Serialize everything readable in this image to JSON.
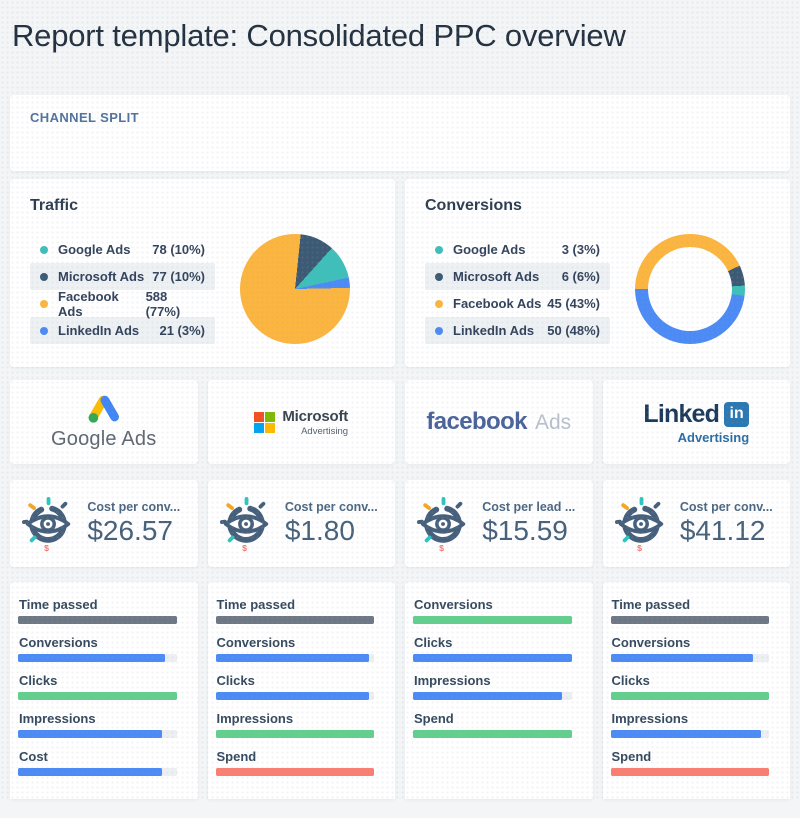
{
  "page": {
    "title": "Report template: Consolidated PPC overview",
    "background": "#f3f5f6"
  },
  "channel_split": {
    "header": "CHANNEL SPLIT"
  },
  "traffic_card": {
    "title": "Traffic",
    "legend": [
      {
        "label": "Google Ads",
        "value": "78 (10%)",
        "color": "#3fbfb9"
      },
      {
        "label": "Microsoft Ads",
        "value": "77 (10%)",
        "color": "#3d5a75"
      },
      {
        "label": "Facebook Ads",
        "value": "588 (77%)",
        "color": "#fcb53f"
      },
      {
        "label": "LinkedIn Ads",
        "value": "21 (3%)",
        "color": "#4c8bf5"
      }
    ]
  },
  "conversions_card": {
    "title": "Conversions",
    "legend": [
      {
        "label": "Google Ads",
        "value": "3 (3%)",
        "color": "#3fbfb9"
      },
      {
        "label": "Microsoft Ads",
        "value": "6 (6%)",
        "color": "#3d5a75"
      },
      {
        "label": "Facebook Ads",
        "value": "45 (43%)",
        "color": "#fcb53f"
      },
      {
        "label": "LinkedIn Ads",
        "value": "50 (48%)",
        "color": "#4c8bf5"
      }
    ]
  },
  "chart_data": [
    {
      "type": "pie",
      "title": "Traffic",
      "categories": [
        "Google Ads",
        "Microsoft Ads",
        "Facebook Ads",
        "LinkedIn Ads"
      ],
      "values": [
        78,
        77,
        588,
        21
      ],
      "percents": [
        10,
        10,
        77,
        3
      ],
      "legend_position": "left",
      "render": {
        "start_deg": 6,
        "segments": [
          {
            "name": "Microsoft Ads",
            "color": "#3d5a75",
            "pct": 10
          },
          {
            "name": "Google Ads",
            "color": "#3fbfb9",
            "pct": 10
          },
          {
            "name": "LinkedIn Ads",
            "color": "#4c8bf5",
            "pct": 3
          },
          {
            "name": "Facebook Ads",
            "color": "#fcb53f",
            "pct": 77
          }
        ]
      }
    },
    {
      "type": "pie",
      "subtype": "donut",
      "title": "Conversions",
      "categories": [
        "Google Ads",
        "Microsoft Ads",
        "Facebook Ads",
        "LinkedIn Ads"
      ],
      "values": [
        3,
        6,
        45,
        50
      ],
      "percents": [
        3,
        6,
        43,
        48
      ],
      "legend_position": "left",
      "render": {
        "start_deg": 270,
        "segments": [
          {
            "name": "Facebook Ads",
            "color": "#fcb53f",
            "pct": 43
          },
          {
            "name": "Microsoft Ads",
            "color": "#3d5a75",
            "pct": 6
          },
          {
            "name": "Google Ads",
            "color": "#3fbfb9",
            "pct": 3
          },
          {
            "name": "LinkedIn Ads",
            "color": "#4c8bf5",
            "pct": 48
          }
        ]
      }
    }
  ],
  "logo_cards": [
    {
      "name": "google-ads",
      "text": "Google Ads"
    },
    {
      "name": "microsoft-advertising",
      "line1": "Microsoft",
      "line2": "Advertising"
    },
    {
      "name": "facebook-ads",
      "word": "facebook",
      "suffix": "Ads"
    },
    {
      "name": "linkedin-advertising",
      "word": "Linked",
      "badge": "in",
      "sub": "Advertising"
    }
  ],
  "kpi_cards": [
    {
      "label": "Cost per conv...",
      "value": "$26.57"
    },
    {
      "label": "Cost per conv...",
      "value": "$1.80"
    },
    {
      "label": "Cost per lead ...",
      "value": "$15.59"
    },
    {
      "label": "Cost per conv...",
      "value": "$41.12"
    }
  ],
  "progress_panels": [
    {
      "bars": [
        {
          "label": "Time passed",
          "color": "#6d7884",
          "pct": 100
        },
        {
          "label": "Conversions",
          "color": "#4c8bf5",
          "pct": 93
        },
        {
          "label": "Clicks",
          "color": "#63cf8d",
          "pct": 100
        },
        {
          "label": "Impressions",
          "color": "#4c8bf5",
          "pct": 91
        },
        {
          "label": "Cost",
          "color": "#4c8bf5",
          "pct": 91
        }
      ]
    },
    {
      "bars": [
        {
          "label": "Time passed",
          "color": "#6d7884",
          "pct": 100
        },
        {
          "label": "Conversions",
          "color": "#4c8bf5",
          "pct": 97
        },
        {
          "label": "Clicks",
          "color": "#4c8bf5",
          "pct": 97
        },
        {
          "label": "Impressions",
          "color": "#63cf8d",
          "pct": 100
        },
        {
          "label": "Spend",
          "color": "#fa7e72",
          "pct": 100
        }
      ]
    },
    {
      "bars": [
        {
          "label": "Conversions",
          "color": "#63cf8d",
          "pct": 100
        },
        {
          "label": "Clicks",
          "color": "#4c8bf5",
          "pct": 100
        },
        {
          "label": "Impressions",
          "color": "#4c8bf5",
          "pct": 94
        },
        {
          "label": "Spend",
          "color": "#63cf8d",
          "pct": 100
        }
      ]
    },
    {
      "bars": [
        {
          "label": "Time passed",
          "color": "#6d7884",
          "pct": 100
        },
        {
          "label": "Conversions",
          "color": "#4c8bf5",
          "pct": 90
        },
        {
          "label": "Clicks",
          "color": "#63cf8d",
          "pct": 100
        },
        {
          "label": "Impressions",
          "color": "#4c8bf5",
          "pct": 95
        },
        {
          "label": "Spend",
          "color": "#fa7e72",
          "pct": 100
        }
      ]
    }
  ]
}
